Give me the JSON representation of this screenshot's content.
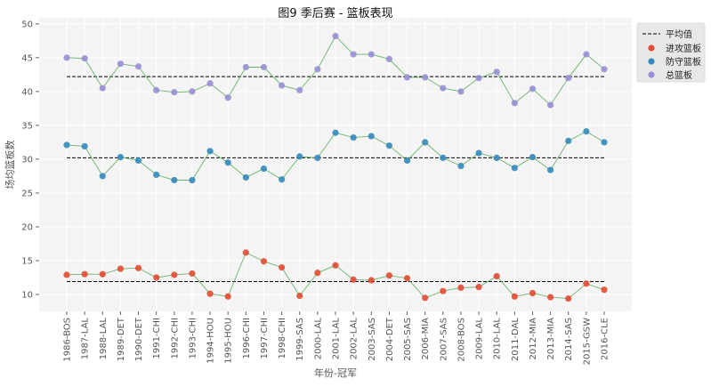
{
  "chart_data": {
    "type": "line",
    "title": "图9 季后赛 - 篮板表现",
    "xlabel": "年份-冠军",
    "ylabel": "场均篮板数",
    "ylim": [
      7.5,
      50.9
    ],
    "yticks": [
      10,
      15,
      20,
      25,
      30,
      35,
      40,
      45,
      50
    ],
    "grid": true,
    "legend_placement": "outside-top-right",
    "line_color": "#6ab46a",
    "categories": [
      "1986-BOS",
      "1987-LAL",
      "1988-LAL",
      "1989-DET",
      "1990-DET",
      "1991-CHI",
      "1992-CHI",
      "1993-CHI",
      "1994-HOU",
      "1995-HOU",
      "1996-CHI",
      "1997-CHI",
      "1998-CHI",
      "1999-SAS",
      "2000-LAL",
      "2001-LAL",
      "2002-LAL",
      "2003-SAS",
      "2004-DET",
      "2005-SAS",
      "2006-MIA",
      "2007-SAS",
      "2008-BOS",
      "2009-LAL",
      "2010-LAL",
      "2011-DAL",
      "2012-MIA",
      "2013-MIA",
      "2014-SAS",
      "2015-GSW",
      "2016-CLE"
    ],
    "mean_label": "平均值",
    "series": [
      {
        "name": "进攻篮板",
        "color": "#E24A33",
        "mean": 11.9,
        "values": [
          12.9,
          13.0,
          13.0,
          13.8,
          13.9,
          12.5,
          12.9,
          13.1,
          10.1,
          9.7,
          16.2,
          14.9,
          14.0,
          9.8,
          13.2,
          14.3,
          12.2,
          12.1,
          12.8,
          12.4,
          9.5,
          10.5,
          11.0,
          11.1,
          12.7,
          9.7,
          10.2,
          9.6,
          9.4,
          11.6,
          10.7
        ]
      },
      {
        "name": "防守篮板",
        "color": "#348ABD",
        "mean": 30.2,
        "values": [
          32.1,
          31.9,
          27.5,
          30.3,
          29.8,
          27.7,
          26.9,
          26.9,
          31.2,
          29.5,
          27.3,
          28.6,
          27.0,
          30.4,
          30.2,
          33.9,
          33.2,
          33.4,
          32.0,
          29.8,
          32.5,
          30.2,
          29.0,
          30.9,
          30.2,
          28.7,
          30.3,
          28.4,
          32.7,
          34.1,
          32.5
        ]
      },
      {
        "name": "总篮板",
        "color": "#988ED5",
        "mean": 42.2,
        "values": [
          45.0,
          44.9,
          40.5,
          44.1,
          43.7,
          40.2,
          39.9,
          40.0,
          41.2,
          39.1,
          43.6,
          43.6,
          40.9,
          40.2,
          43.3,
          48.2,
          45.5,
          45.5,
          44.8,
          42.1,
          42.1,
          40.5,
          40.0,
          42.0,
          42.9,
          38.3,
          40.4,
          38.0,
          42.0,
          45.5,
          43.3
        ]
      }
    ]
  }
}
